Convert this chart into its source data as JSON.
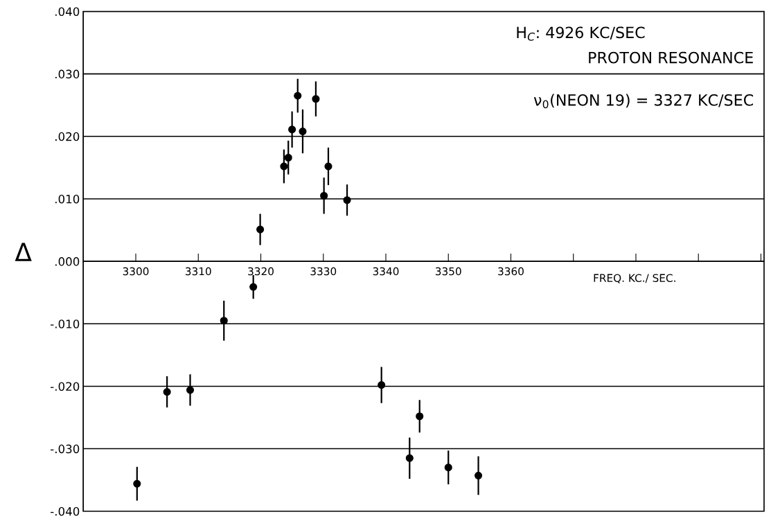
{
  "chart_data": {
    "type": "scatter",
    "xlabel": "FREQ. KC./ SEC.",
    "ylabel": "Δ",
    "annotations": [
      "H$_{C}$: 4926 KC/SEC",
      "PROTON RESONANCE",
      "ν$_{0}$(NEON 19) = 3327 KC/SEC"
    ],
    "x": [
      3300.2,
      3305.0,
      3308.7,
      3314.1,
      3318.8,
      3319.9,
      3323.7,
      3324.4,
      3325.0,
      3325.9,
      3326.7,
      3328.8,
      3330.1,
      3330.8,
      3333.8,
      3339.3,
      3343.8,
      3345.4,
      3350.0,
      3354.8
    ],
    "series": [
      {
        "color": "#000000",
        "values": [
          -0.0356,
          -0.0209,
          -0.0206,
          -0.0095,
          -0.0041,
          0.0051,
          0.0152,
          0.0166,
          0.0211,
          0.0265,
          0.0208,
          0.026,
          0.0105,
          0.0152,
          0.0098,
          -0.0198,
          -0.0315,
          -0.0248,
          -0.033,
          -0.0343
        ],
        "errors": [
          0.0027,
          0.0025,
          0.0025,
          0.0032,
          0.0019,
          0.0025,
          0.0027,
          0.0027,
          0.0029,
          0.0027,
          0.0035,
          0.0028,
          0.0029,
          0.003,
          0.0025,
          0.0029,
          0.0033,
          0.0026,
          0.0027,
          0.0031
        ]
      }
    ],
    "marker": "circle",
    "xlim": [
      3291.6,
      3400.5
    ],
    "xticks": [
      3300,
      3310,
      3320,
      3330,
      3340,
      3350,
      3360,
      {
        "value": 3370,
        "label": null
      },
      {
        "value": 3380,
        "label": null
      },
      {
        "value": 3390,
        "label": null
      },
      {
        "value": 3400,
        "label": null
      }
    ],
    "ylim": [
      -0.04,
      0.04
    ],
    "yticks": [
      {
        "value": -0.04,
        "label": "-.040"
      },
      {
        "value": -0.03,
        "label": "-.030"
      },
      {
        "value": -0.02,
        "label": "-.020"
      },
      {
        "value": -0.01,
        "label": "-.010"
      },
      {
        "value": 0.0,
        "label": ".000"
      },
      {
        "value": 0.01,
        "label": ".010"
      },
      {
        "value": 0.02,
        "label": ".020"
      },
      {
        "value": 0.03,
        "label": ".030"
      },
      {
        "value": 0.04,
        "label": ".040"
      }
    ],
    "grid": "y"
  }
}
